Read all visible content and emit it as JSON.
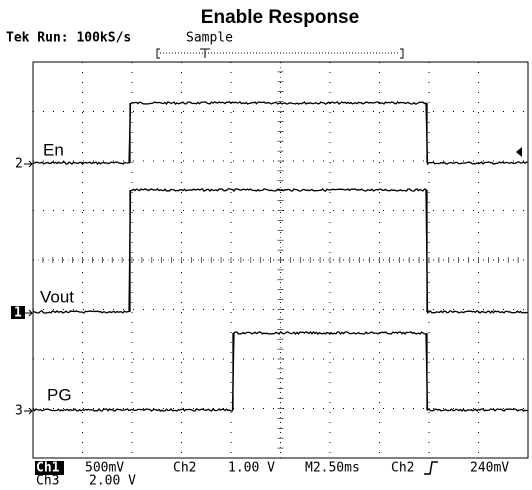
{
  "header": {
    "title": "Enable Response",
    "status": "Tek Run: 100kS/s",
    "mode": "Sample"
  },
  "channels": [
    {
      "label": "En",
      "marker": "2"
    },
    {
      "label": "Vout",
      "marker": "1"
    },
    {
      "label": "PG",
      "marker": "3"
    }
  ],
  "footer": {
    "ch1": "Ch1",
    "ch1_scale": "500mV",
    "ch2": "Ch2",
    "ch2_scale": "1.00 V",
    "timebase": "M2.50ms",
    "trigger_source": "Ch2",
    "trigger_level": "240mV",
    "ch3": "Ch3",
    "ch3_scale": "2.00 V"
  }
}
